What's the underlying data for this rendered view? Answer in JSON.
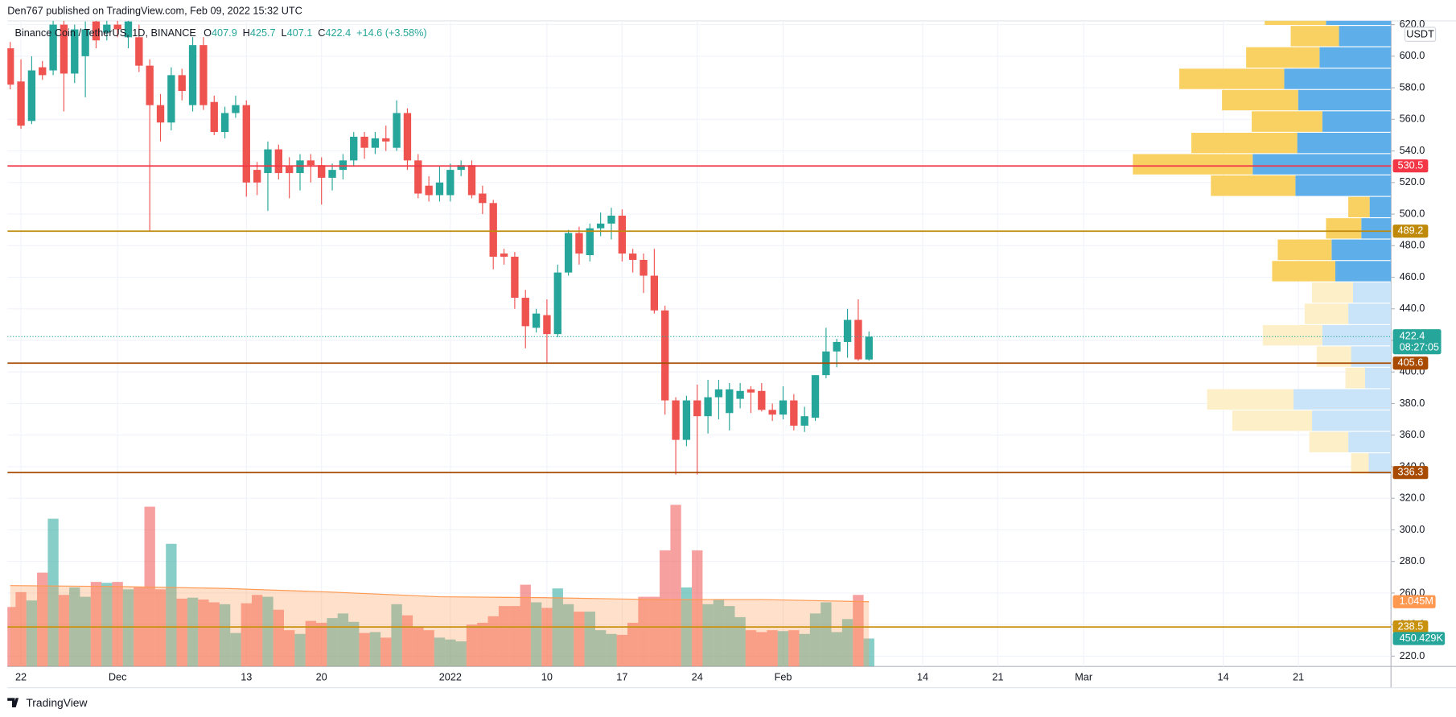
{
  "header": {
    "publisher": "Den767 published on TradingView.com, Feb 09, 2022 15:32 UTC"
  },
  "footer": {
    "brand": "TradingView"
  },
  "chart_data": {
    "type": "candlestick",
    "title": "Binance Coin / TetherUS, 1D, BINANCE",
    "ohlc_prefixes": [
      "O",
      "H",
      "L",
      "C"
    ],
    "change": "+14.6 (+3.58%)",
    "currency": "USDT",
    "countdown": "08:27:05",
    "colors": {
      "up": "#26a69a",
      "down": "#ef5350"
    },
    "open": [
      605,
      584,
      559,
      593,
      591,
      620,
      589,
      600,
      622,
      615,
      620,
      612,
      612,
      594,
      569,
      558,
      588,
      569,
      607,
      571,
      552,
      564,
      569,
      528,
      526,
      541,
      530,
      526,
      534,
      531,
      523,
      528,
      534,
      549,
      542,
      548,
      542,
      564,
      534,
      518,
      512,
      512,
      528,
      531,
      513,
      507,
      475,
      473,
      447,
      428,
      436,
      424,
      463,
      488,
      474,
      491,
      494,
      499,
      475,
      471,
      461,
      439,
      382,
      357,
      382,
      372,
      384,
      374,
      383,
      389,
      388,
      376,
      373,
      382,
      366,
      371,
      398,
      413,
      419,
      433,
      407.9
    ],
    "high": [
      609,
      598,
      600,
      597,
      626,
      624,
      620,
      622,
      626,
      628,
      624,
      625,
      620,
      598,
      576,
      593,
      592,
      612,
      612,
      575,
      568,
      575,
      572,
      533,
      546,
      544,
      536,
      538,
      538,
      536,
      532,
      538,
      552,
      552,
      552,
      556,
      572,
      567,
      538,
      524,
      530,
      532,
      534,
      534,
      518,
      509,
      478,
      476,
      452,
      440,
      446,
      468,
      490,
      492,
      494,
      501,
      504,
      503,
      478,
      475,
      478,
      442,
      384,
      385,
      392,
      395,
      395,
      393,
      393,
      391,
      393,
      380,
      391,
      386,
      378,
      398,
      428,
      421,
      440,
      446,
      425.7
    ],
    "low": [
      579,
      554,
      557,
      585,
      588,
      565,
      583,
      574,
      605,
      610,
      612,
      605,
      590,
      489,
      546,
      553,
      572,
      565,
      566,
      550,
      548,
      561,
      511,
      512,
      502,
      522,
      510,
      515,
      520,
      506,
      515,
      522,
      530,
      535,
      538,
      540,
      540,
      528,
      510,
      508,
      508,
      508,
      524,
      510,
      500,
      465,
      468,
      440,
      415,
      425,
      406,
      422,
      461,
      468,
      470,
      486,
      484,
      470,
      463,
      450,
      437,
      373,
      335,
      353,
      335,
      361,
      370,
      363,
      377,
      374,
      375,
      369,
      370,
      363,
      362,
      369,
      396,
      403,
      409,
      407,
      407.1
    ],
    "close": [
      582,
      556,
      591,
      588,
      620,
      589,
      617,
      617,
      610,
      620,
      617,
      622,
      594,
      569,
      558,
      588,
      578,
      607,
      569,
      552,
      564,
      569,
      520,
      520,
      541,
      526,
      526,
      534,
      531,
      523,
      528,
      534,
      549,
      542,
      548,
      546,
      564,
      534,
      513,
      512,
      520,
      528,
      531,
      512,
      507,
      473,
      473,
      447,
      429,
      437,
      424,
      463,
      488,
      475,
      491,
      494,
      499,
      475,
      471,
      461,
      439,
      382,
      357,
      382,
      372,
      384,
      389,
      389,
      388,
      387,
      376,
      373,
      382,
      366,
      372,
      398,
      413,
      419,
      433,
      408,
      422.4
    ],
    "volume": [
      960000,
      1200000,
      1065000,
      1515000,
      2385000,
      1155000,
      1275000,
      1125000,
      1365000,
      1350000,
      1365000,
      1245000,
      1275000,
      2580000,
      1245000,
      1980000,
      1095000,
      1110000,
      1080000,
      1035000,
      1005000,
      540000,
      1020000,
      1155000,
      1125000,
      915000,
      585000,
      525000,
      735000,
      705000,
      780000,
      855000,
      720000,
      540000,
      555000,
      465000,
      1005000,
      825000,
      630000,
      585000,
      465000,
      435000,
      405000,
      675000,
      705000,
      810000,
      975000,
      975000,
      1320000,
      1035000,
      945000,
      1260000,
      1005000,
      885000,
      885000,
      585000,
      525000,
      510000,
      705000,
      1125000,
      1125000,
      1875000,
      2610000,
      1275000,
      1875000,
      1005000,
      1080000,
      975000,
      795000,
      585000,
      555000,
      585000,
      570000,
      585000,
      525000,
      855000,
      1035000,
      555000,
      765000,
      1155000,
      450429
    ],
    "volume_label": "450.429K",
    "volume_ma": {
      "x": [
        0,
        10,
        20,
        30,
        40,
        50,
        60,
        70,
        80
      ],
      "values": [
        1305000,
        1290000,
        1260000,
        1200000,
        1125000,
        1110000,
        1080000,
        1080000,
        1045000
      ],
      "last_label": "1.045M",
      "color": "#ff9850"
    },
    "xlim": [
      -0.26,
      128.63
    ],
    "xticks": [
      {
        "value": 1,
        "label": "22"
      },
      {
        "value": 10,
        "label": "Dec"
      },
      {
        "value": 22,
        "label": "13"
      },
      {
        "value": 29,
        "label": "20"
      },
      {
        "value": 41,
        "label": "2022"
      },
      {
        "value": 50,
        "label": "10"
      },
      {
        "value": 57,
        "label": "17"
      },
      {
        "value": 64,
        "label": "24"
      },
      {
        "value": 72,
        "label": "Feb"
      },
      {
        "value": 85,
        "label": "14"
      },
      {
        "value": 92,
        "label": "21"
      },
      {
        "value": 100,
        "label": "Mar"
      },
      {
        "value": 113,
        "label": "14"
      },
      {
        "value": 120,
        "label": "21"
      }
    ],
    "ylim": [
      213.5,
      622.4
    ],
    "yticks": [
      {
        "value": 220,
        "label": "220.0"
      },
      {
        "value": 240,
        "label": "240.0"
      },
      {
        "value": 260,
        "label": "260.0"
      },
      {
        "value": 280,
        "label": "280.0"
      },
      {
        "value": 300,
        "label": "300.0"
      },
      {
        "value": 320,
        "label": "320.0"
      },
      {
        "value": 340,
        "label": "340.0"
      },
      {
        "value": 360,
        "label": "360.0"
      },
      {
        "value": 380,
        "label": "380.0"
      },
      {
        "value": 400,
        "label": "400.0"
      },
      {
        "value": 420,
        "label": "420.0"
      },
      {
        "value": 440,
        "label": "440.0"
      },
      {
        "value": 460,
        "label": "460.0"
      },
      {
        "value": 480,
        "label": "480.0"
      },
      {
        "value": 500,
        "label": "500.0"
      },
      {
        "value": 520,
        "label": "520.0"
      },
      {
        "value": 540,
        "label": "540.0"
      },
      {
        "value": 560,
        "label": "560.0"
      },
      {
        "value": 580,
        "label": "580.0"
      },
      {
        "value": 600,
        "label": "600.0"
      },
      {
        "value": 620,
        "label": "620.0"
      }
    ],
    "grid": true,
    "levels": [
      {
        "value": 530.5,
        "color": "#f23645"
      },
      {
        "value": 489.2,
        "color": "#bf8a0a"
      },
      {
        "value": 405.6,
        "color": "#a84b00"
      },
      {
        "value": 336.3,
        "color": "#a84b00"
      },
      {
        "value": 238.5,
        "color": "#c9920e"
      }
    ],
    "volume_profile": {
      "bins": [
        335.3,
        348.8,
        362.4,
        375.9,
        389.4,
        403.0,
        416.5,
        430.0,
        443.6,
        457.1,
        470.6,
        484.2,
        497.7,
        511.2,
        524.8,
        538.3,
        551.8,
        565.4,
        578.9,
        592.4,
        606.0,
        619.5,
        633.0
      ],
      "up": [
        19,
        42,
        86,
        93,
        21,
        37,
        64,
        47,
        44,
        68,
        58,
        38,
        23,
        91,
        129,
        114,
        76,
        82,
        113,
        79,
        52,
        66
      ],
      "down": [
        24,
        46,
        85,
        105,
        28,
        43,
        74,
        46,
        41,
        60,
        64,
        32,
        23,
        103,
        149,
        101,
        74,
        100,
        115,
        77,
        56,
        70
      ],
      "faded": [
        true,
        true,
        true,
        true,
        true,
        true,
        true,
        true,
        true,
        false,
        false,
        false,
        false,
        false,
        false,
        false,
        false,
        false,
        false,
        false,
        false,
        false
      ],
      "colors": {
        "up": "#f9d162",
        "down": "#5eaee9",
        "up_faded": "#fdefc7",
        "down_faded": "#c9e3f8"
      }
    }
  }
}
